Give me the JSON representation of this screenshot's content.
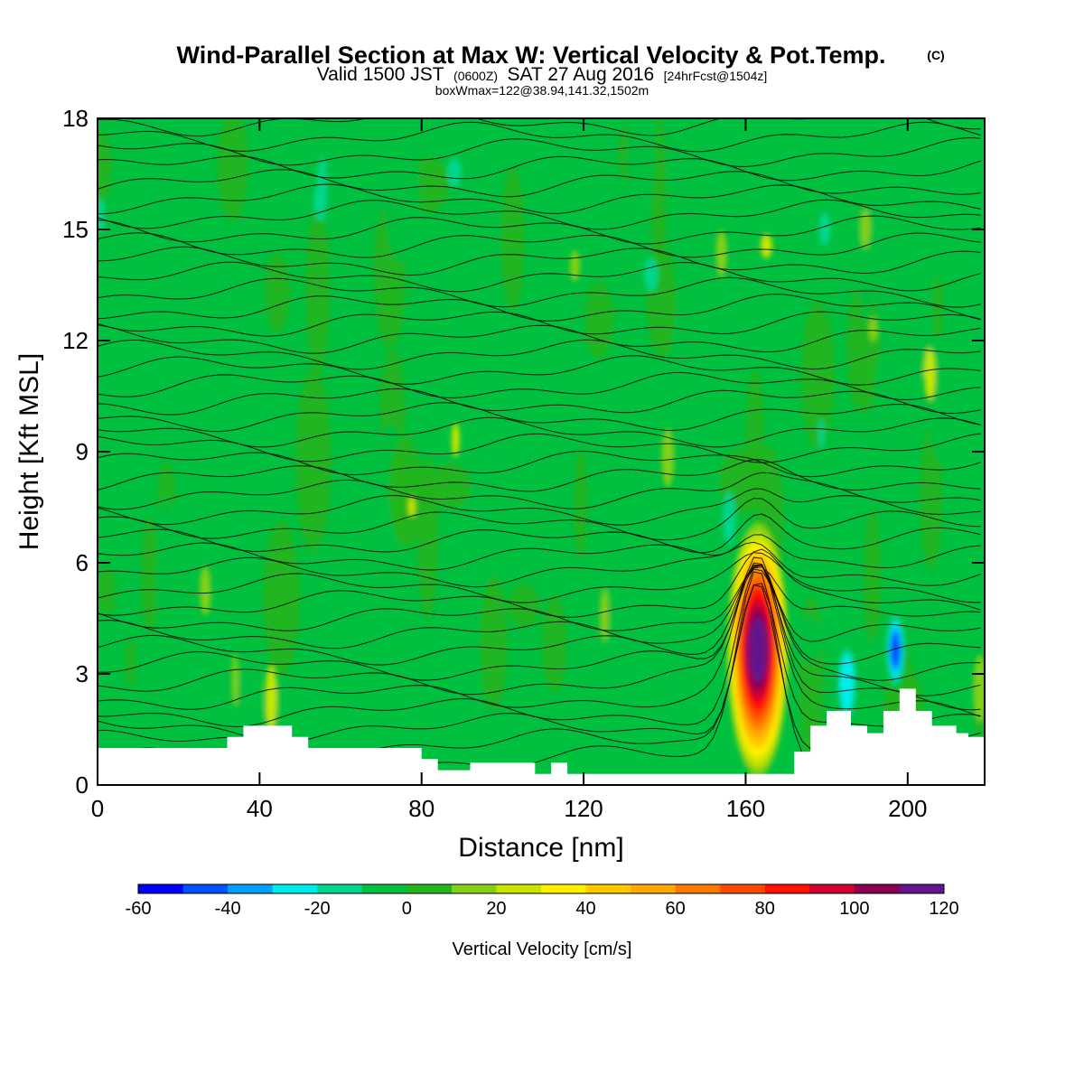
{
  "chart_data": {
    "type": "heatmap",
    "title": "Wind-Parallel Section at Max W: Vertical Velocity & Pot.Temp.",
    "title_mark": "(C)",
    "subtitle_main": "Valid 1500 JST",
    "subtitle_small1": "(0600Z)",
    "subtitle_mid": "SAT 27 Aug 2016",
    "subtitle_small2": "[24hrFcst@1504z]",
    "subtitle2": "boxWmax=122@38.94,141.32,1502m",
    "xlabel": "Distance [nm]",
    "ylabel": "Height [Kft MSL]",
    "xlim": [
      0,
      219
    ],
    "ylim": [
      0,
      18
    ],
    "x_ticks": [
      0,
      40,
      80,
      120,
      160,
      200
    ],
    "y_ticks": [
      0,
      3,
      6,
      9,
      12,
      15,
      18
    ],
    "colorbar": {
      "label": "Vertical Velocity [cm/s]",
      "min": -60,
      "max": 120,
      "step": 10,
      "tick_values": [
        -60,
        -40,
        -20,
        0,
        20,
        40,
        60,
        80,
        100,
        120
      ],
      "colors": [
        "#0000ff",
        "#0050ff",
        "#00a0ff",
        "#00ecec",
        "#00d58c",
        "#00c040",
        "#24b41c",
        "#84d018",
        "#c8e600",
        "#ffee00",
        "#ffc800",
        "#ffa800",
        "#ff7800",
        "#ff4800",
        "#ff1000",
        "#d00030",
        "#8c0050",
        "#64148c"
      ]
    },
    "features": [
      {
        "name": "updraft core",
        "x_center": 163,
        "height_range": [
          1,
          6.3
        ],
        "max_value": 122
      },
      {
        "name": "downdraft",
        "x_center": 197,
        "height_range": [
          2.5,
          4.8
        ],
        "min_value": -50
      },
      {
        "name": "downdraft",
        "x_center": 185,
        "height_range": [
          2,
          3.5
        ],
        "min_value": -30
      }
    ],
    "terrain_kft": [
      [
        0,
        1.0
      ],
      [
        20,
        1.0
      ],
      [
        32,
        1.3
      ],
      [
        36,
        1.6
      ],
      [
        44,
        1.6
      ],
      [
        48,
        1.3
      ],
      [
        52,
        1.0
      ],
      [
        76,
        1.0
      ],
      [
        80,
        0.7
      ],
      [
        84,
        0.4
      ],
      [
        88,
        0.4
      ],
      [
        92,
        0.6
      ],
      [
        104,
        0.6
      ],
      [
        108,
        0.3
      ],
      [
        112,
        0.6
      ],
      [
        116,
        0.3
      ],
      [
        168,
        0.3
      ],
      [
        172,
        0.9
      ],
      [
        176,
        1.6
      ],
      [
        180,
        2.0
      ],
      [
        186,
        1.6
      ],
      [
        190,
        1.4
      ],
      [
        194,
        2.0
      ],
      [
        198,
        2.6
      ],
      [
        202,
        2.0
      ],
      [
        206,
        1.6
      ],
      [
        212,
        1.4
      ],
      [
        215,
        1.3
      ],
      [
        219,
        1.3
      ]
    ],
    "theta_contours": "potential temperature isentropes (unlabeled)"
  }
}
